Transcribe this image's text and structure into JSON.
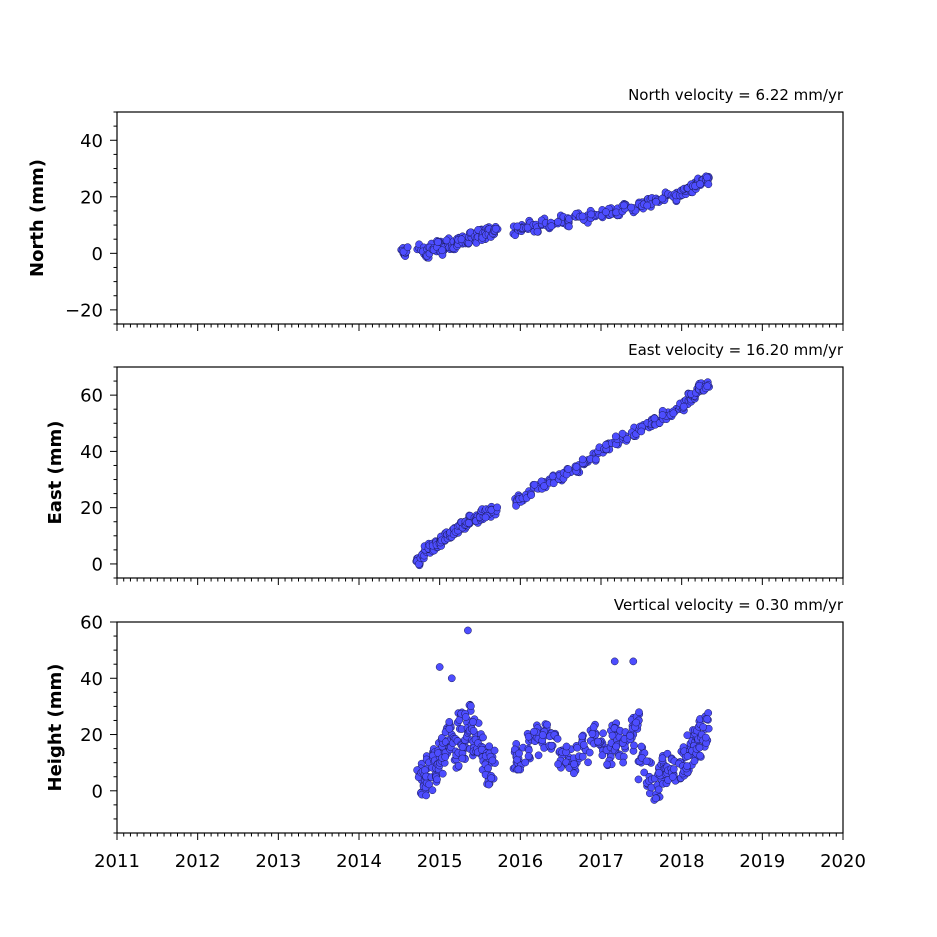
{
  "chart_data": [
    {
      "type": "scatter",
      "title": "North velocity = 6.22 mm/yr",
      "xlabel": "",
      "ylabel": "North (mm)",
      "xlim": [
        2011,
        2020
      ],
      "ylim": [
        -25,
        50
      ],
      "yticks": [
        -20,
        0,
        20,
        40
      ],
      "ytick_labels": [
        "−20",
        "0",
        "20",
        "40"
      ],
      "xticks": [
        2011,
        2012,
        2013,
        2014,
        2015,
        2016,
        2017,
        2018,
        2019,
        2020
      ],
      "xtick_labels_visible": false,
      "grid": false,
      "marker_color": "#4d4dff",
      "series": [
        {
          "x": [
            2014.55,
            2014.57,
            2014.75,
            2014.8,
            2014.85,
            2014.9,
            2014.95,
            2015.0,
            2015.05,
            2015.1,
            2015.15,
            2015.2,
            2015.25,
            2015.3,
            2015.35,
            2015.4,
            2015.45,
            2015.5,
            2015.55,
            2015.6,
            2015.65,
            2015.68,
            2015.95,
            2016.0,
            2016.1,
            2016.2,
            2016.3,
            2016.4,
            2016.5,
            2016.6,
            2016.7,
            2016.8,
            2016.9,
            2017.0,
            2017.1,
            2017.2,
            2017.3,
            2017.4,
            2017.5,
            2017.6,
            2017.7,
            2017.8,
            2017.9,
            2018.0,
            2018.05,
            2018.1,
            2018.15,
            2018.2,
            2018.25,
            2018.3
          ],
          "y": [
            0,
            1,
            2,
            1,
            0,
            2,
            1,
            3,
            1,
            4,
            2,
            3,
            4,
            5,
            4,
            6,
            5,
            7,
            6,
            8,
            7,
            8,
            8,
            9,
            10,
            9,
            11,
            10,
            12,
            11,
            13,
            12,
            14,
            14,
            15,
            15,
            16,
            16,
            17,
            18,
            19,
            20,
            20,
            21,
            22,
            23,
            24,
            25,
            26,
            26
          ]
        }
      ]
    },
    {
      "type": "scatter",
      "title": "East velocity = 16.20 mm/yr",
      "xlabel": "",
      "ylabel": "East (mm)",
      "xlim": [
        2011,
        2020
      ],
      "ylim": [
        -5,
        70
      ],
      "yticks": [
        0,
        20,
        40,
        60
      ],
      "ytick_labels": [
        "0",
        "20",
        "40",
        "60"
      ],
      "xticks": [
        2011,
        2012,
        2013,
        2014,
        2015,
        2016,
        2017,
        2018,
        2019,
        2020
      ],
      "xtick_labels_visible": false,
      "grid": false,
      "marker_color": "#4d4dff",
      "series": [
        {
          "x": [
            2014.75,
            2014.8,
            2014.85,
            2014.9,
            2014.95,
            2015.0,
            2015.05,
            2015.1,
            2015.15,
            2015.2,
            2015.25,
            2015.3,
            2015.35,
            2015.4,
            2015.45,
            2015.5,
            2015.55,
            2015.6,
            2015.65,
            2015.68,
            2015.95,
            2016.0,
            2016.1,
            2016.2,
            2016.3,
            2016.4,
            2016.5,
            2016.6,
            2016.7,
            2016.8,
            2016.9,
            2017.0,
            2017.1,
            2017.2,
            2017.3,
            2017.4,
            2017.5,
            2017.6,
            2017.7,
            2017.8,
            2017.9,
            2018.0,
            2018.05,
            2018.1,
            2018.15,
            2018.2,
            2018.25,
            2018.3
          ],
          "y": [
            1,
            3,
            5,
            6,
            7,
            8,
            9,
            10,
            11,
            12,
            13,
            14,
            15,
            16,
            16,
            17,
            18,
            18,
            19,
            19,
            22,
            23,
            25,
            27,
            28,
            30,
            31,
            33,
            34,
            36,
            38,
            40,
            42,
            44,
            45,
            47,
            48,
            50,
            51,
            53,
            54,
            56,
            57,
            59,
            60,
            62,
            63,
            64
          ]
        }
      ]
    },
    {
      "type": "scatter",
      "title": "Vertical velocity = 0.30 mm/yr",
      "xlabel": "",
      "ylabel": "Height (mm)",
      "xlim": [
        2011,
        2020
      ],
      "ylim": [
        -15,
        60
      ],
      "yticks": [
        0,
        20,
        40,
        60
      ],
      "ytick_labels": [
        "0",
        "20",
        "40",
        "60"
      ],
      "xticks": [
        2011,
        2012,
        2013,
        2014,
        2015,
        2016,
        2017,
        2018,
        2019,
        2020
      ],
      "xtick_labels": [
        "2011",
        "2012",
        "2013",
        "2014",
        "2015",
        "2016",
        "2017",
        "2018",
        "2019",
        "2020"
      ],
      "grid": false,
      "marker_color": "#4d4dff",
      "series": [
        {
          "x": [
            2014.75,
            2014.8,
            2014.85,
            2014.9,
            2014.95,
            2015.0,
            2015.05,
            2015.1,
            2015.15,
            2015.2,
            2015.25,
            2015.3,
            2015.35,
            2015.4,
            2015.45,
            2015.5,
            2015.55,
            2015.6,
            2015.65,
            2015.95,
            2016.0,
            2016.1,
            2016.2,
            2016.3,
            2016.4,
            2016.5,
            2016.6,
            2016.7,
            2016.8,
            2016.9,
            2017.0,
            2017.1,
            2017.15,
            2017.2,
            2017.3,
            2017.4,
            2017.45,
            2017.5,
            2017.6,
            2017.7,
            2017.75,
            2017.8,
            2017.9,
            2018.0,
            2018.05,
            2018.1,
            2018.15,
            2018.2,
            2018.25,
            2018.3,
            2015.0,
            2015.35,
            2017.17,
            2017.4,
            2015.15
          ],
          "y": [
            5,
            2,
            8,
            10,
            6,
            12,
            15,
            18,
            20,
            14,
            22,
            16,
            25,
            18,
            20,
            15,
            12,
            8,
            10,
            12,
            10,
            15,
            18,
            20,
            16,
            14,
            12,
            10,
            15,
            18,
            16,
            14,
            20,
            18,
            15,
            20,
            22,
            10,
            5,
            2,
            4,
            8,
            6,
            10,
            12,
            14,
            16,
            18,
            20,
            22,
            44,
            57,
            46,
            46,
            40
          ]
        }
      ]
    }
  ]
}
